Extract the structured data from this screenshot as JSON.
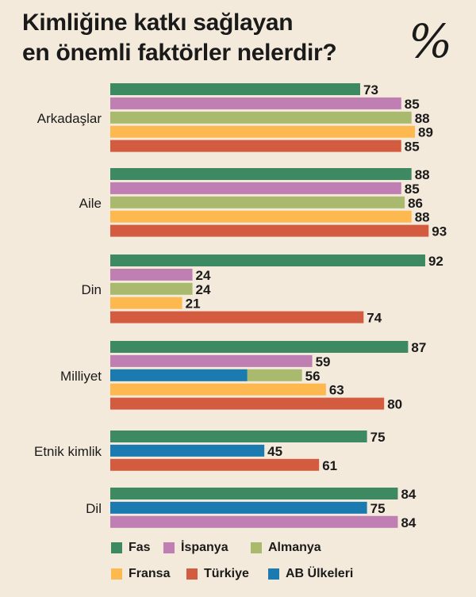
{
  "title_line1": "Kimliğine katkı sağlayan",
  "title_line2": "en önemli faktörler nelerdir?",
  "percent_symbol": "%",
  "chart_data": {
    "type": "bar",
    "orientation": "horizontal",
    "title": "Kimliğine katkı sağlayan en önemli faktörler nelerdir?",
    "unit": "%",
    "xlim": [
      0,
      100
    ],
    "colors": {
      "Fas": "#3d8a62",
      "İspanya": "#c07fb3",
      "Almanya": "#a9b96e",
      "Fransa": "#fdb94f",
      "Türkiye": "#d35c40",
      "AB Ülkeleri": "#1b7bb0"
    },
    "groups": [
      {
        "category": "Arkadaşlar",
        "bars": [
          {
            "series": "Fas",
            "value": 73
          },
          {
            "series": "İspanya",
            "value": 85
          },
          {
            "series": "Almanya",
            "value": 88
          },
          {
            "series": "Fransa",
            "value": 89
          },
          {
            "series": "Türkiye",
            "value": 85
          }
        ]
      },
      {
        "category": "Aile",
        "bars": [
          {
            "series": "Fas",
            "value": 88
          },
          {
            "series": "İspanya",
            "value": 85
          },
          {
            "series": "Almanya",
            "value": 86
          },
          {
            "series": "Fransa",
            "value": 88
          },
          {
            "series": "Türkiye",
            "value": 93
          }
        ]
      },
      {
        "category": "Din",
        "bars": [
          {
            "series": "Fas",
            "value": 92
          },
          {
            "series": "İspanya",
            "value": 24
          },
          {
            "series": "Almanya",
            "value": 24
          },
          {
            "series": "Fransa",
            "value": 21
          },
          {
            "series": "Türkiye",
            "value": 74
          }
        ]
      },
      {
        "category": "Milliyet",
        "bars": [
          {
            "series": "Fas",
            "value": 87
          },
          {
            "series": "İspanya",
            "value": 59
          },
          {
            "series": "Almanya",
            "value": 56,
            "inset": {
              "series": "AB Ülkeleri",
              "value": 40
            }
          },
          {
            "series": "Fransa",
            "value": 63
          },
          {
            "series": "Türkiye",
            "value": 80
          }
        ]
      },
      {
        "category": "Etnik kimlik",
        "bars": [
          {
            "series": "Fas",
            "value": 75
          },
          {
            "series": "AB Ülkeleri",
            "value": 45
          },
          {
            "series": "Türkiye",
            "value": 61
          }
        ]
      },
      {
        "category": "Dil",
        "bars": [
          {
            "series": "Fas",
            "value": 84
          },
          {
            "series": "AB Ülkeleri",
            "value": 75
          },
          {
            "series": "İspanya",
            "value": 84
          }
        ]
      }
    ],
    "legend": [
      "Fas",
      "İspanya",
      "Almanya",
      "Fransa",
      "Türkiye",
      "AB Ülkeleri"
    ]
  }
}
